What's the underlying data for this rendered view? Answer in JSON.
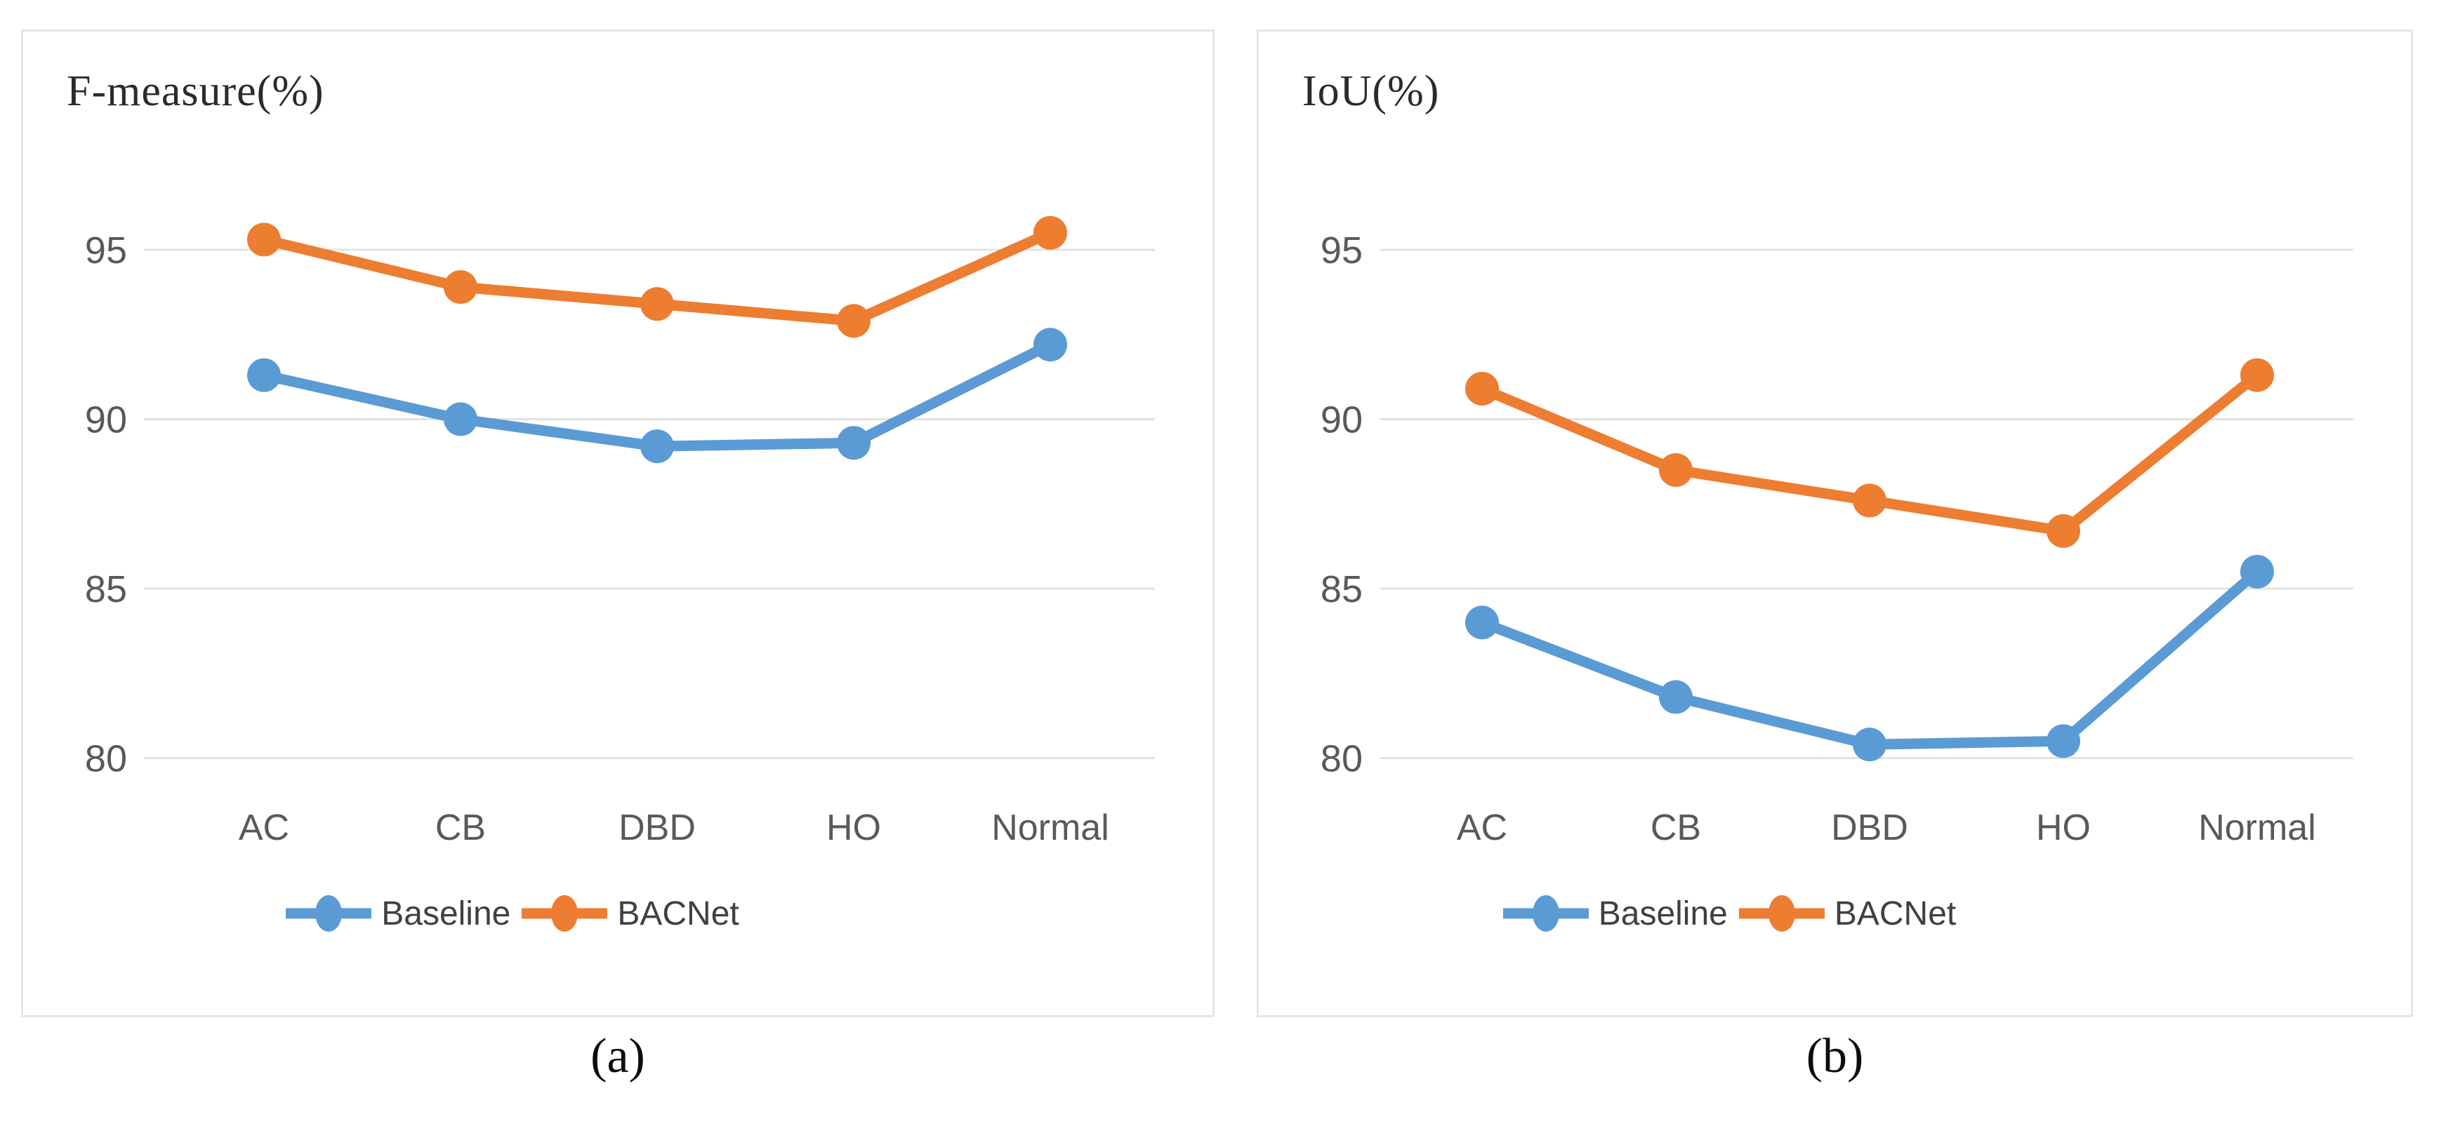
{
  "page": {
    "background": "#ffffff",
    "gridline_color": "#e3e3e3",
    "axis_text_color": "#595959",
    "legend_text_color": "#404040"
  },
  "chart_data": [
    {
      "type": "line",
      "title": "F-measure(%)",
      "caption": "(a)",
      "xlabel": "",
      "ylabel": "F-measure(%)",
      "categories": [
        "AC",
        "CB",
        "DBD",
        "HO",
        "Normal"
      ],
      "y_axis": {
        "ticks": [
          95,
          90,
          85,
          80
        ],
        "ylim": [
          78.3,
          96.8
        ],
        "grid": true
      },
      "legend_position": "bottom",
      "series": [
        {
          "name": "Baseline",
          "color": "#5B9BD5",
          "values": [
            91.3,
            90.0,
            89.2,
            89.3,
            92.2
          ]
        },
        {
          "name": "BACNet",
          "color": "#ED7D31",
          "values": [
            95.3,
            93.9,
            93.4,
            92.9,
            95.5
          ]
        }
      ]
    },
    {
      "type": "line",
      "title": "IoU(%)",
      "caption": "(b)",
      "xlabel": "",
      "ylabel": "IoU(%)",
      "categories": [
        "AC",
        "CB",
        "DBD",
        "HO",
        "Normal"
      ],
      "y_axis": {
        "ticks": [
          95,
          90,
          85,
          80
        ],
        "ylim": [
          78.3,
          96.8
        ],
        "grid": true
      },
      "legend_position": "bottom",
      "series": [
        {
          "name": "Baseline",
          "color": "#5B9BD5",
          "values": [
            84.0,
            81.8,
            80.4,
            80.5,
            85.5
          ]
        },
        {
          "name": "BACNet",
          "color": "#ED7D31",
          "values": [
            90.9,
            88.5,
            87.6,
            86.7,
            91.3
          ]
        }
      ]
    }
  ]
}
